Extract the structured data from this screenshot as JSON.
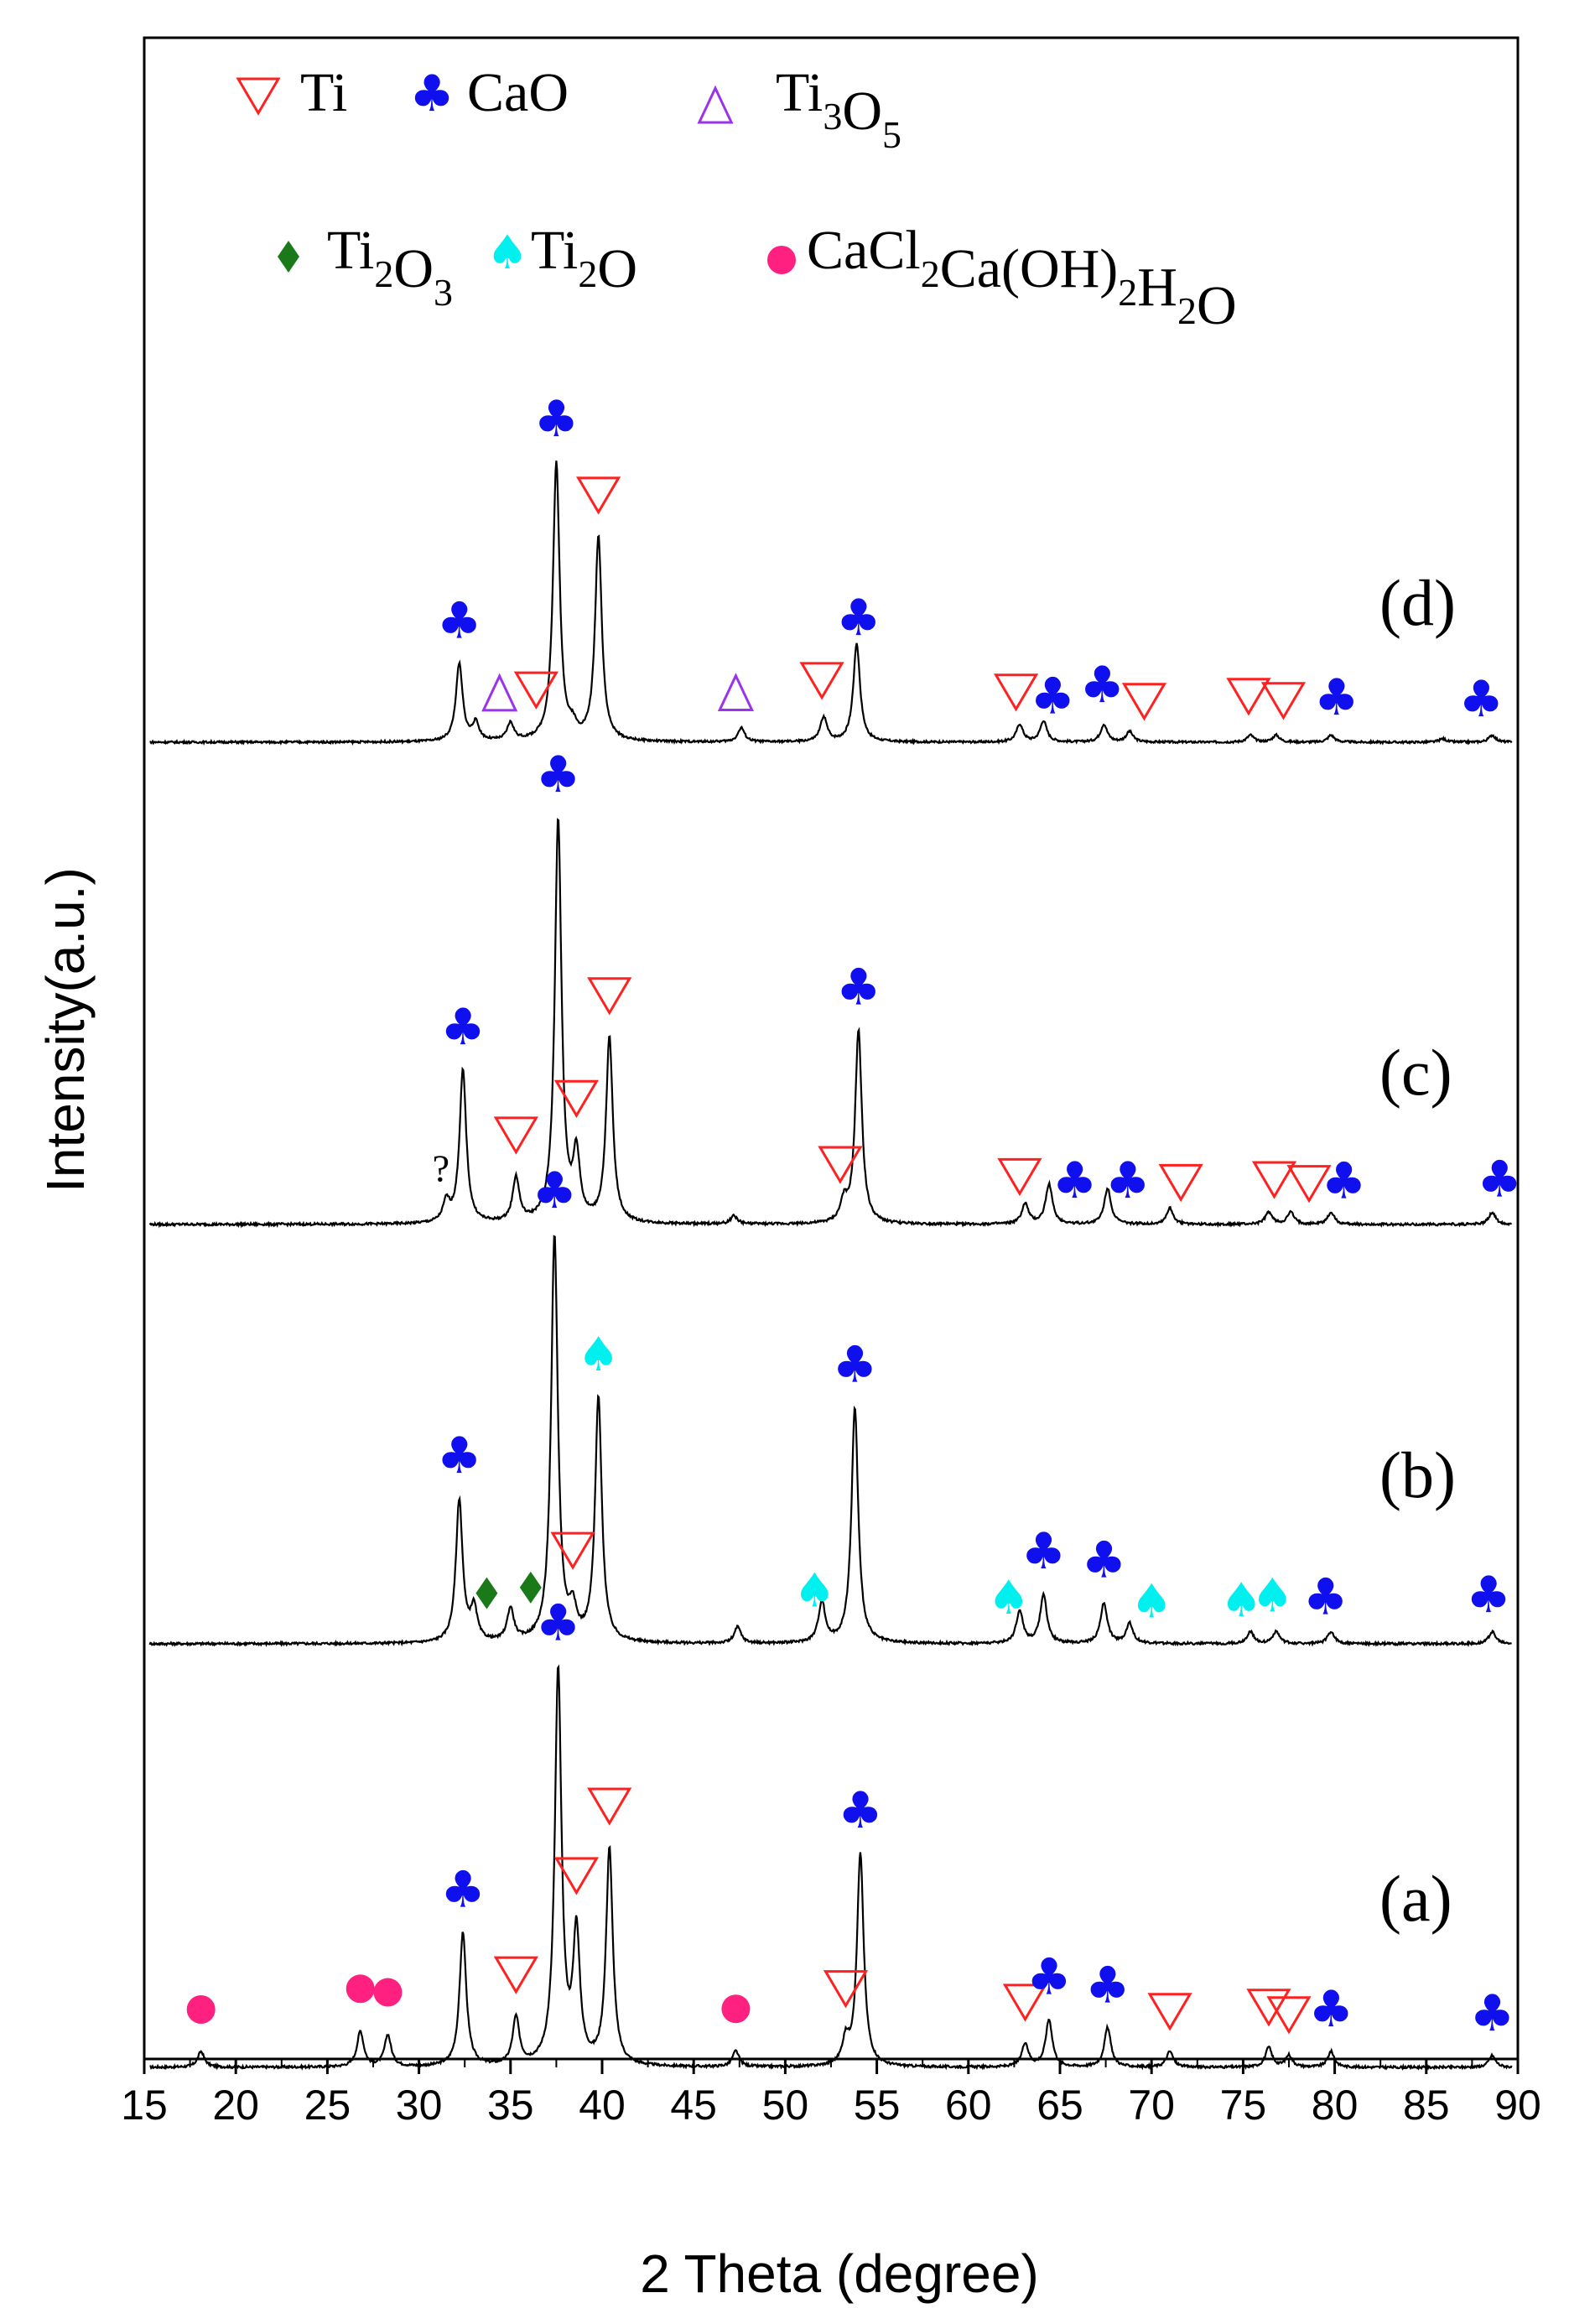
{
  "chart_data": {
    "type": "line",
    "title": "",
    "xlabel": "2 Theta (degree)",
    "ylabel": "Intensity(a.u.)",
    "xlim": [
      15,
      90
    ],
    "xticks": [
      "15",
      "20",
      "25",
      "30",
      "35",
      "40",
      "45",
      "50",
      "55",
      "60",
      "65",
      "70",
      "75",
      "80",
      "85",
      "90"
    ],
    "grid": false,
    "legend_position": "top",
    "legend": [
      {
        "key": "Ti",
        "name": "Ti",
        "sub": "",
        "marker": "triangle-down-open",
        "color": "#ff2020"
      },
      {
        "key": "CaO",
        "name": "CaO",
        "sub": "",
        "marker": "club",
        "color": "#1010ee"
      },
      {
        "key": "Ti3O5",
        "name": "Ti",
        "sub": "3",
        "name2": "O",
        "sub2": "5",
        "marker": "triangle-up-open",
        "color": "#9a33ee"
      },
      {
        "key": "Ti2O3",
        "name": "Ti",
        "sub": "2",
        "name2": "O",
        "sub2": "3",
        "marker": "diamond",
        "color": "#1a7a1a"
      },
      {
        "key": "Ti2O",
        "name": "Ti",
        "sub": "2",
        "name2": "O",
        "sub2": "",
        "marker": "spade",
        "color": "#00f0f0"
      },
      {
        "key": "CaCl2",
        "name": "CaCl",
        "sub": "2",
        "name2": "Ca(OH)",
        "sub2": "2",
        "name3": "H",
        "sub3": "2",
        "name4": "O",
        "marker": "circle",
        "color": "#ff2080"
      }
    ],
    "series": [
      {
        "name": "(a)",
        "baseline": 0.09,
        "peaks": [
          [
            18.1,
            0.04
          ],
          [
            26.8,
            0.09
          ],
          [
            28.3,
            0.08
          ],
          [
            32.4,
            0.34
          ],
          [
            35.3,
            0.12
          ],
          [
            37.6,
            1.0
          ],
          [
            38.6,
            0.33
          ],
          [
            40.4,
            0.55
          ],
          [
            47.3,
            0.04
          ],
          [
            53.3,
            0.06
          ],
          [
            54.1,
            0.54
          ],
          [
            63.1,
            0.06
          ],
          [
            64.4,
            0.12
          ],
          [
            67.6,
            0.1
          ],
          [
            71.0,
            0.04
          ],
          [
            76.4,
            0.05
          ],
          [
            77.5,
            0.03
          ],
          [
            79.8,
            0.04
          ],
          [
            88.6,
            0.03
          ]
        ],
        "annotations": [
          [
            18.1,
            "CaCl2"
          ],
          [
            26.8,
            "CaCl2"
          ],
          [
            28.3,
            "CaCl2"
          ],
          [
            32.4,
            "CaO"
          ],
          [
            35.3,
            "Ti"
          ],
          [
            37.6,
            "CaO"
          ],
          [
            38.6,
            "Ti"
          ],
          [
            40.4,
            "Ti"
          ],
          [
            47.3,
            "CaCl2"
          ],
          [
            53.3,
            "Ti"
          ],
          [
            54.1,
            "CaO"
          ],
          [
            63.1,
            "Ti"
          ],
          [
            64.4,
            "CaO"
          ],
          [
            67.6,
            "CaO"
          ],
          [
            71.0,
            "Ti"
          ],
          [
            76.4,
            "Ti"
          ],
          [
            77.5,
            "Ti"
          ],
          [
            79.8,
            "CaO"
          ],
          [
            88.6,
            "CaO"
          ]
        ]
      },
      {
        "name": "(b)",
        "baseline": 0.08,
        "peaks": [
          [
            32.2,
            0.35
          ],
          [
            33.0,
            0.08
          ],
          [
            35.0,
            0.08
          ],
          [
            37.4,
            1.0
          ],
          [
            38.4,
            0.07
          ],
          [
            39.8,
            0.6
          ],
          [
            47.4,
            0.04
          ],
          [
            52.0,
            0.1
          ],
          [
            53.8,
            0.58
          ],
          [
            62.8,
            0.08
          ],
          [
            64.1,
            0.12
          ],
          [
            67.4,
            0.1
          ],
          [
            68.8,
            0.05
          ],
          [
            75.4,
            0.03
          ],
          [
            76.8,
            0.03
          ],
          [
            79.8,
            0.03
          ],
          [
            88.6,
            0.03
          ]
        ],
        "annotations": [
          [
            32.2,
            "CaO"
          ],
          [
            33.7,
            "Ti2O3"
          ],
          [
            36.1,
            "Ti2O3"
          ],
          [
            37.4,
            "CaO"
          ],
          [
            38.4,
            "Ti"
          ],
          [
            39.8,
            "Ti2O"
          ],
          [
            51.6,
            "Ti2O"
          ],
          [
            53.8,
            "CaO"
          ],
          [
            62.2,
            "Ti2O"
          ],
          [
            64.1,
            "CaO"
          ],
          [
            67.4,
            "CaO"
          ],
          [
            70.0,
            "Ti2O"
          ],
          [
            74.9,
            "Ti2O"
          ],
          [
            76.6,
            "Ti2O"
          ],
          [
            79.5,
            "CaO"
          ],
          [
            88.4,
            "CaO"
          ]
        ]
      },
      {
        "name": "(c)",
        "baseline": 0.08,
        "peaks": [
          [
            31.5,
            0.05
          ],
          [
            32.4,
            0.38
          ],
          [
            35.3,
            0.11
          ],
          [
            37.6,
            1.0
          ],
          [
            38.6,
            0.16
          ],
          [
            40.4,
            0.46
          ],
          [
            47.2,
            0.02
          ],
          [
            53.2,
            0.05
          ],
          [
            54.0,
            0.48
          ],
          [
            63.1,
            0.05
          ],
          [
            64.4,
            0.1
          ],
          [
            67.6,
            0.09
          ],
          [
            71.0,
            0.04
          ],
          [
            76.4,
            0.03
          ],
          [
            77.6,
            0.03
          ],
          [
            79.8,
            0.03
          ],
          [
            88.6,
            0.03
          ]
        ],
        "annotations": [
          [
            31.2,
            "?"
          ],
          [
            32.4,
            "CaO"
          ],
          [
            35.3,
            "Ti"
          ],
          [
            37.6,
            "CaO"
          ],
          [
            38.6,
            "Ti"
          ],
          [
            40.4,
            "Ti"
          ],
          [
            53.0,
            "Ti"
          ],
          [
            54.0,
            "CaO"
          ],
          [
            62.8,
            "Ti"
          ],
          [
            65.8,
            "CaO"
          ],
          [
            68.7,
            "CaO"
          ],
          [
            71.6,
            "Ti"
          ],
          [
            76.7,
            "Ti"
          ],
          [
            78.6,
            "Ti"
          ],
          [
            80.5,
            "CaO"
          ],
          [
            89.0,
            "CaO"
          ]
        ]
      },
      {
        "name": "(d)",
        "baseline": 0.06,
        "peaks": [
          [
            32.2,
            0.22
          ],
          [
            33.1,
            0.05
          ],
          [
            35.0,
            0.05
          ],
          [
            37.5,
            0.79
          ],
          [
            38.4,
            0.03
          ],
          [
            39.8,
            0.58
          ],
          [
            47.6,
            0.04
          ],
          [
            52.1,
            0.07
          ],
          [
            53.9,
            0.28
          ],
          [
            62.8,
            0.05
          ],
          [
            64.1,
            0.06
          ],
          [
            67.4,
            0.05
          ],
          [
            68.8,
            0.03
          ],
          [
            75.4,
            0.02
          ],
          [
            76.8,
            0.02
          ],
          [
            79.8,
            0.02
          ],
          [
            85.9,
            0.01
          ],
          [
            88.6,
            0.02
          ]
        ],
        "annotations": [
          [
            32.2,
            "CaO"
          ],
          [
            34.4,
            "Ti3O5"
          ],
          [
            36.4,
            "Ti"
          ],
          [
            37.5,
            "CaO"
          ],
          [
            39.8,
            "Ti"
          ],
          [
            47.3,
            "Ti3O5"
          ],
          [
            52.0,
            "Ti"
          ],
          [
            54.0,
            "CaO"
          ],
          [
            62.6,
            "Ti"
          ],
          [
            64.6,
            "CaO"
          ],
          [
            67.3,
            "CaO"
          ],
          [
            69.6,
            "Ti"
          ],
          [
            75.3,
            "Ti"
          ],
          [
            77.2,
            "Ti"
          ],
          [
            80.1,
            "CaO"
          ],
          [
            88.0,
            "CaO"
          ]
        ]
      }
    ],
    "question_mark": "?"
  }
}
